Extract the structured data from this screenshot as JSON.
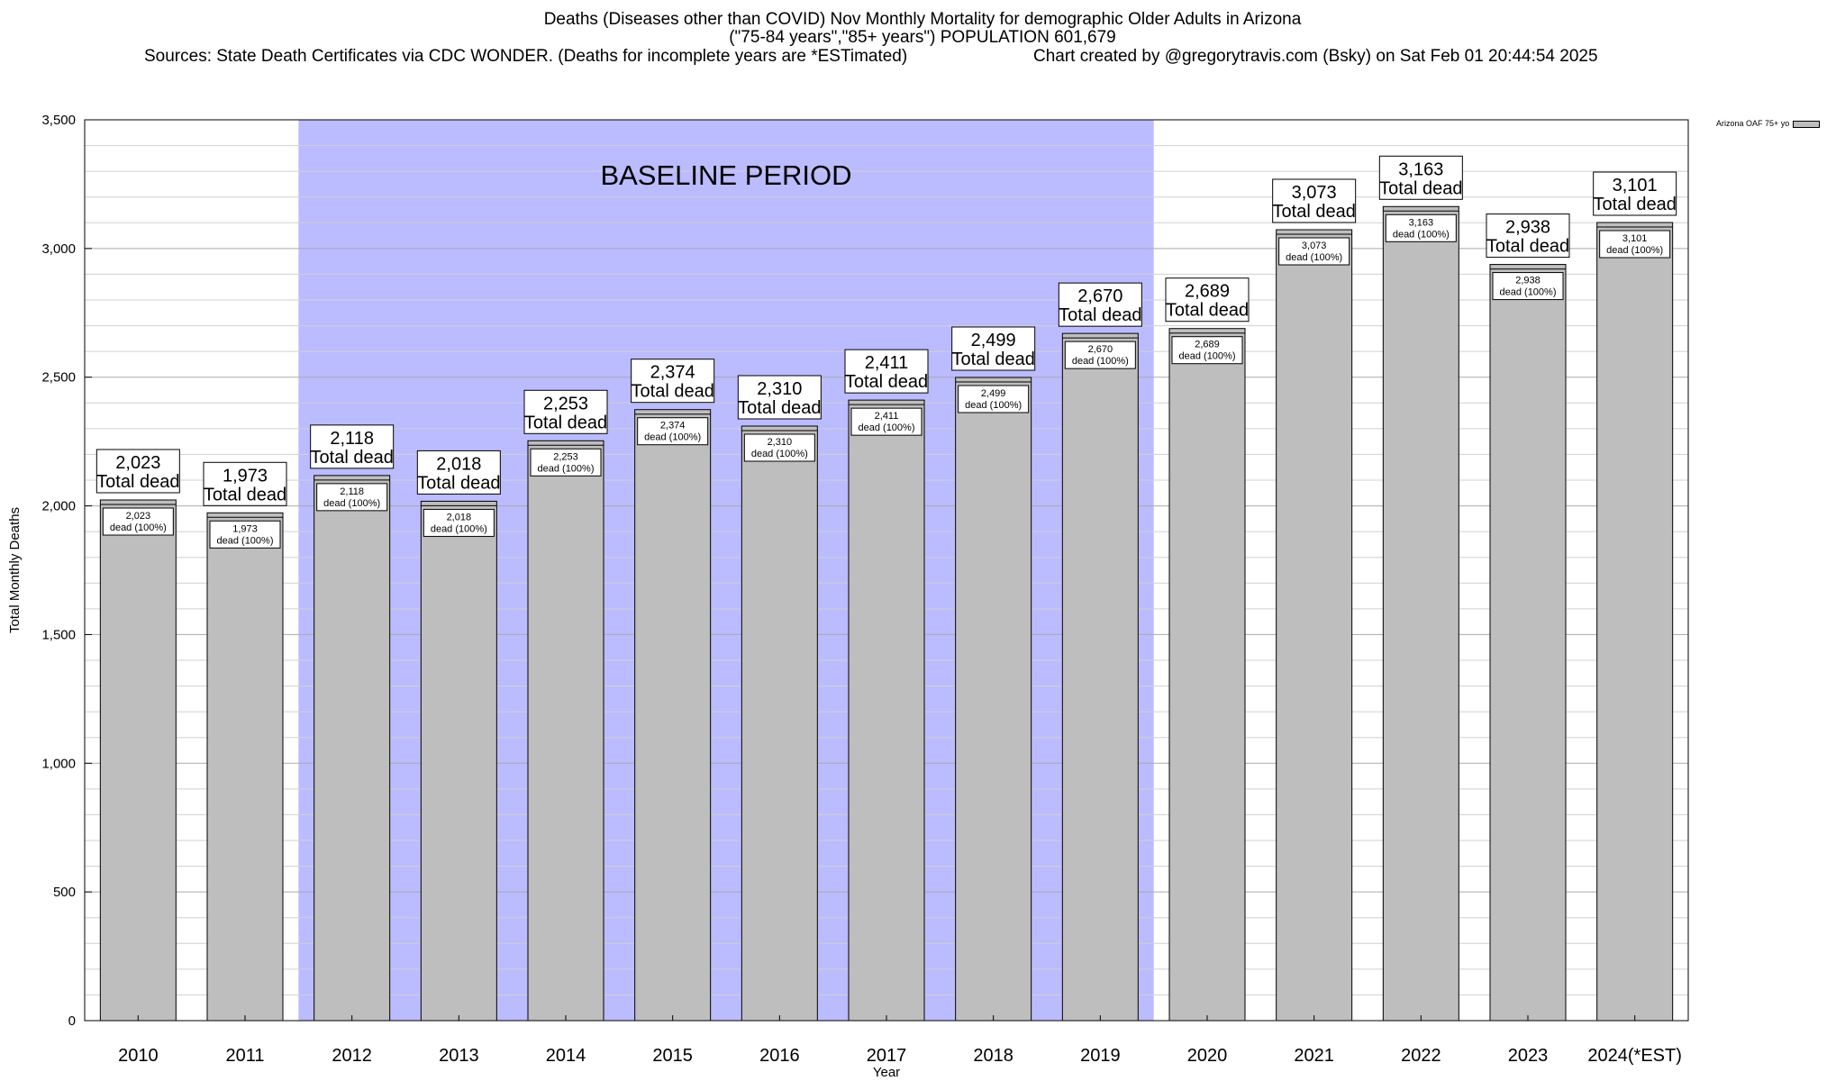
{
  "header": {
    "title_line1": "Deaths (Diseases other than COVID) Nov Monthly Mortality for demographic Older Adults in Arizona",
    "title_line2": "(\"75-84 years\",\"85+ years\") POPULATION 601,679",
    "sources": "Sources: State Death Certificates via CDC WONDER. (Deaths for incomplete years are *ESTimated)",
    "credit": "Chart created by @gregorytravis.com (Bsky) on Sat Feb 01 20:44:54 2025"
  },
  "chart_data": {
    "type": "bar",
    "xlabel": "Year",
    "ylabel": "Total Monthly Deaths",
    "ylim": [
      0,
      3500
    ],
    "y_ticks": [
      0,
      500,
      1000,
      1500,
      2000,
      2500,
      3000,
      3500
    ],
    "y_tick_labels": [
      "0",
      "500",
      "1,000",
      "1,500",
      "2,000",
      "2,500",
      "3,000",
      "3,500"
    ],
    "grid": true,
    "categories": [
      "2010",
      "2011",
      "2012",
      "2013",
      "2014",
      "2015",
      "2016",
      "2017",
      "2018",
      "2019",
      "2020",
      "2021",
      "2022",
      "2023",
      "2024(*EST)"
    ],
    "series": [
      {
        "name": "Arizona OAF 75+ yo",
        "values": [
          2023,
          1973,
          2118,
          2018,
          2253,
          2374,
          2310,
          2411,
          2499,
          2670,
          2689,
          3073,
          3163,
          2938,
          3101
        ],
        "value_labels": [
          "2,023",
          "1,973",
          "2,118",
          "2,018",
          "2,253",
          "2,374",
          "2,310",
          "2,411",
          "2,499",
          "2,670",
          "2,689",
          "3,073",
          "3,163",
          "2,938",
          "3,101"
        ]
      }
    ],
    "total_label_suffix": "Total dead",
    "inner_label_suffix": "dead (100%)",
    "baseline": {
      "label": "BASELINE PERIOD",
      "from": "2012",
      "to": "2019",
      "color": "#bbbbff"
    },
    "bar_color": "#bebebe",
    "legend_position": "top-right"
  }
}
